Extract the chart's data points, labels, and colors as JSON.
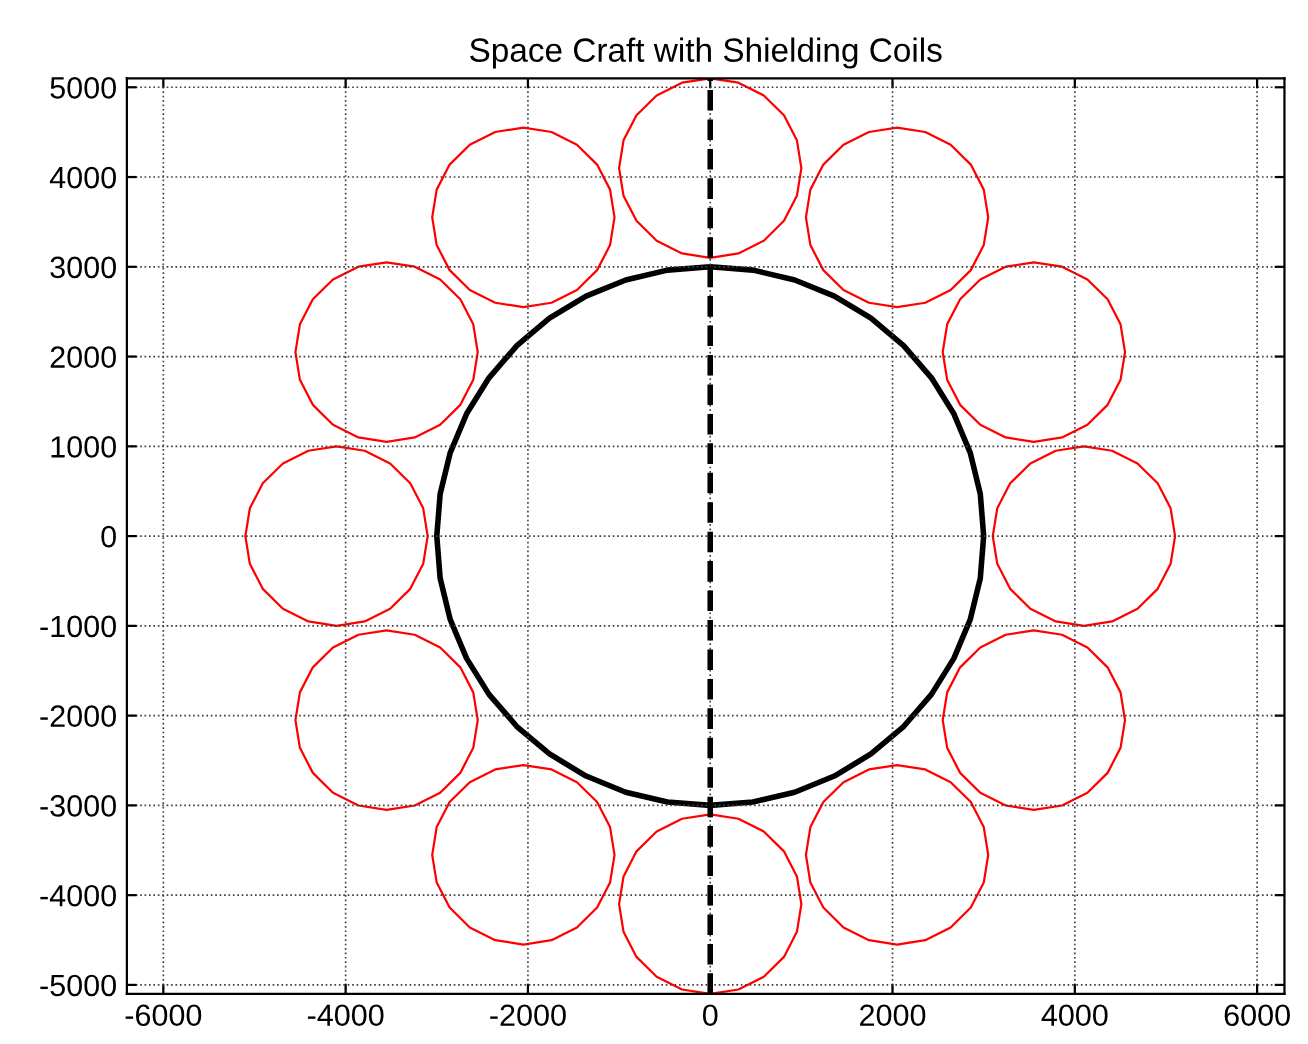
{
  "chart_data": {
    "type": "line",
    "title": "Space Craft with Shielding Coils",
    "xlim": [
      -6400,
      6300
    ],
    "ylim": [
      -5100,
      5100
    ],
    "xticks": [
      {
        "value": -6000,
        "label": "-6000"
      },
      {
        "value": -4000,
        "label": "-4000"
      },
      {
        "value": -2000,
        "label": "-2000"
      },
      0,
      2000,
      4000,
      6000
    ],
    "yticks": [
      {
        "value": -5000,
        "label": "-5000"
      },
      {
        "value": -4000,
        "label": "-4000"
      },
      {
        "value": -3000,
        "label": "-3000"
      },
      {
        "value": -2000,
        "label": "-2000"
      },
      {
        "value": -1000,
        "label": "-1000"
      },
      0,
      1000,
      2000,
      3000,
      4000,
      5000
    ],
    "grid": true,
    "ref_lines": [
      {
        "axis": "x",
        "value": 0,
        "color": "#000000",
        "line_style": "dashed"
      }
    ]
  }
}
